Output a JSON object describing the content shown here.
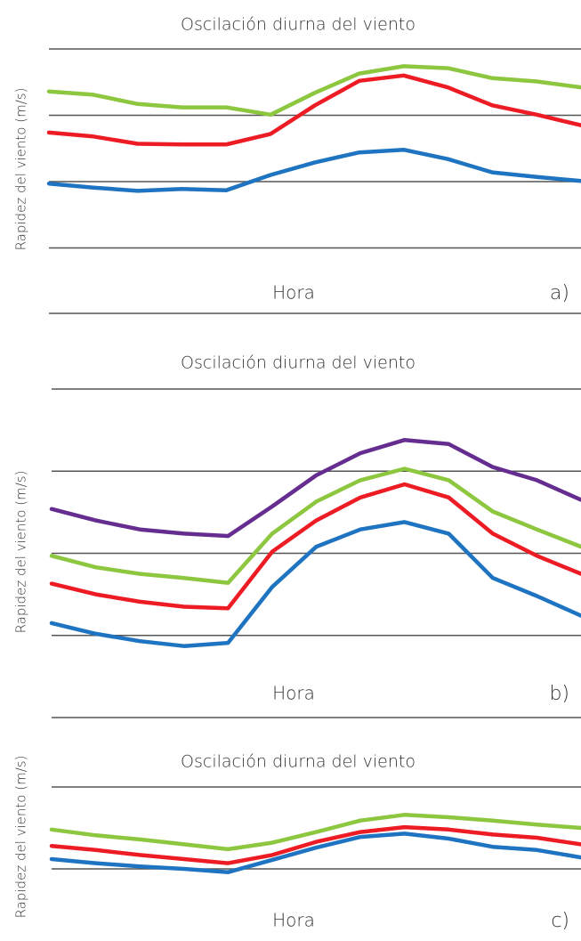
{
  "chart_data": [
    {
      "type": "line",
      "title": "Oscilación diurna del viento",
      "ylabel": "Rapidez del viento (m/s)",
      "xlabel": "Hora",
      "panel_label": "a)",
      "ylim": [
        -1,
        3
      ],
      "yticks": [
        0,
        1,
        2,
        3
      ],
      "grid": true,
      "series": [
        {
          "color": "#8dc63f",
          "values": [
            2.36,
            2.31,
            2.17,
            2.12,
            2.12,
            2.01,
            2.34,
            2.63,
            2.74,
            2.71,
            2.56,
            2.51,
            2.42
          ]
        },
        {
          "color": "#ed1c24",
          "values": [
            1.74,
            1.68,
            1.57,
            1.56,
            1.56,
            1.72,
            2.15,
            2.52,
            2.6,
            2.42,
            2.15,
            2.01,
            1.85
          ]
        },
        {
          "color": "#1f74c2",
          "values": [
            0.97,
            0.91,
            0.86,
            0.89,
            0.87,
            1.1,
            1.29,
            1.44,
            1.48,
            1.34,
            1.14,
            1.07,
            1.01
          ]
        }
      ]
    },
    {
      "type": "line",
      "title": "Oscilación diurna del viento",
      "ylabel": "Rapidez del viento (m/s)",
      "xlabel": "Hora",
      "panel_label": "b)",
      "ylim": [
        -1,
        3
      ],
      "yticks": [
        0,
        1,
        2,
        3
      ],
      "grid": true,
      "series": [
        {
          "color": "#662d91",
          "values": [
            1.54,
            1.4,
            1.29,
            1.24,
            1.21,
            1.57,
            1.95,
            2.22,
            2.38,
            2.33,
            2.05,
            1.89,
            1.65
          ]
        },
        {
          "color": "#8dc63f",
          "values": [
            0.97,
            0.83,
            0.75,
            0.7,
            0.64,
            1.24,
            1.63,
            1.89,
            2.03,
            1.89,
            1.51,
            1.29,
            1.08
          ]
        },
        {
          "color": "#ed1c24",
          "values": [
            0.63,
            0.5,
            0.41,
            0.35,
            0.33,
            1.02,
            1.4,
            1.68,
            1.84,
            1.68,
            1.24,
            0.97,
            0.75
          ]
        },
        {
          "color": "#1f74c2",
          "values": [
            0.15,
            0.02,
            -0.07,
            -0.13,
            -0.09,
            0.59,
            1.08,
            1.29,
            1.38,
            1.24,
            0.7,
            0.48,
            0.24
          ]
        }
      ]
    },
    {
      "type": "line",
      "title": "Oscilación diurna del viento",
      "ylabel": "Rapidez del viento (m/s)",
      "xlabel": "Hora",
      "panel_label": "c)",
      "ylim": [
        -0.5,
        1.5
      ],
      "yticks": [
        0,
        1
      ],
      "grid": true,
      "series": [
        {
          "color": "#8dc63f",
          "values": [
            0.48,
            0.41,
            0.36,
            0.3,
            0.24,
            0.32,
            0.45,
            0.59,
            0.66,
            0.63,
            0.59,
            0.54,
            0.5
          ]
        },
        {
          "color": "#ed1c24",
          "values": [
            0.28,
            0.23,
            0.17,
            0.12,
            0.07,
            0.17,
            0.33,
            0.45,
            0.51,
            0.48,
            0.42,
            0.38,
            0.3
          ]
        },
        {
          "color": "#1f74c2",
          "values": [
            0.12,
            0.07,
            0.03,
            0.0,
            -0.04,
            0.11,
            0.26,
            0.39,
            0.43,
            0.37,
            0.27,
            0.23,
            0.14
          ]
        }
      ]
    }
  ]
}
